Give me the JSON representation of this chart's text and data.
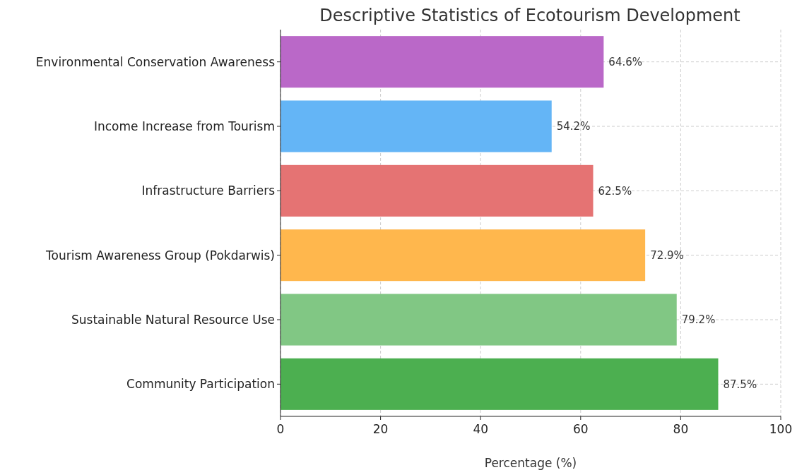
{
  "chart_data": {
    "type": "bar",
    "orientation": "horizontal",
    "title": "Descriptive Statistics of Ecotourism Development",
    "xlabel": "Percentage (%)",
    "categories": [
      "Environmental Conservation Awareness",
      "Income Increase from Tourism",
      "Infrastructure Barriers",
      "Tourism Awareness Group (Pokdarwis)",
      "Sustainable Natural Resource Use",
      "Community Participation"
    ],
    "values": [
      64.6,
      54.2,
      62.5,
      72.9,
      79.2,
      87.5
    ],
    "colors": [
      "#ba68c8",
      "#64b5f6",
      "#e57373",
      "#ffb74d",
      "#81c784",
      "#4caf50"
    ],
    "value_labels": [
      "64.6%",
      "54.2%",
      "62.5%",
      "72.9%",
      "79.2%",
      "87.5%"
    ],
    "xlim": [
      0,
      100
    ],
    "xticks": [
      0,
      20,
      40,
      60,
      80,
      100
    ],
    "grid": true
  }
}
